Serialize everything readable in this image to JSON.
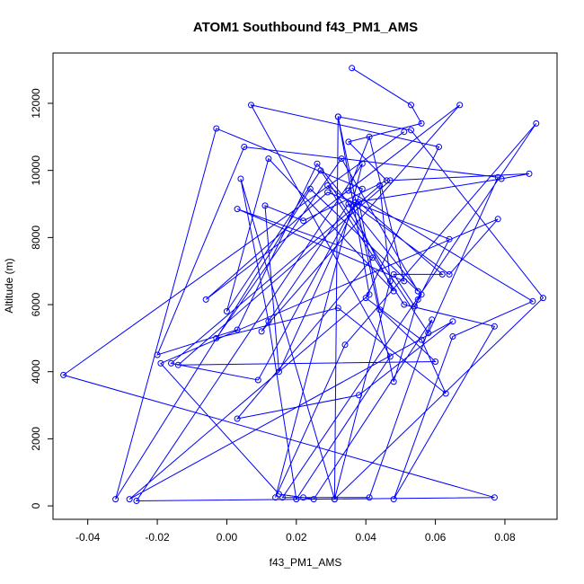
{
  "chart_data": {
    "type": "scatter",
    "title": "ATOM1 Southbound f43_PM1_AMS",
    "xlabel": "f43_PM1_AMS",
    "ylabel": "Altitude (m)",
    "xlim": [
      -0.05,
      0.095
    ],
    "ylim": [
      -400,
      13500
    ],
    "x_ticks": [
      -0.04,
      -0.02,
      0.0,
      0.02,
      0.04,
      0.06,
      0.08
    ],
    "x_tick_labels": [
      "-0.04",
      "-0.02",
      "0.00",
      "0.02",
      "0.04",
      "0.06",
      "0.08"
    ],
    "y_ticks": [
      0,
      2000,
      4000,
      6000,
      8000,
      10000,
      12000
    ],
    "y_tick_labels": [
      "0",
      "2000",
      "4000",
      "6000",
      "8000",
      "10000",
      "12000"
    ],
    "grid": false,
    "legend": "none",
    "marker": "open-circle",
    "connected": true,
    "color": "#0000ff",
    "series": [
      {
        "x": [
          0.036,
          0.053,
          0.056,
          0.035,
          0.046,
          0.022,
          0.011,
          0.015,
          0.039,
          -0.003,
          -0.032,
          0.024,
          0.055,
          0.033,
          -0.003,
          0.032,
          0.063,
          0.056,
          0.04,
          0.061,
          0.007,
          0.047,
          0.02,
          0.012,
          0.004,
          0.031,
          0.032,
          0.048,
          0.055,
          0.064,
          0.029,
          -0.006,
          0.067,
          0.01,
          0.035,
          0.048,
          0.012,
          0.0,
          0.027,
          0.058,
          0.078,
          0.005,
          -0.02,
          0.003,
          0.026,
          0.056,
          0.054,
          0.048,
          0.062,
          0.038,
          0.044,
          0.06,
          -0.014,
          0.047,
          0.087,
          0.079,
          0.037,
          0.009,
          -0.016,
          0.044,
          0.047,
          0.031,
          0.091,
          0.053,
          0.032,
          0.041,
          -0.028,
          0.065,
          0.038,
          0.003,
          0.042,
          0.003,
          0.051,
          0.041,
          0.035,
          0.088,
          0.065,
          0.048,
          0.077,
          0.051,
          0.029,
          0.064,
          0.078,
          -0.019,
          0.015,
          0.022,
          0.025,
          0.059,
          0.041,
          0.016,
          0.089,
          0.034,
          0.014,
          0.039,
          -0.026,
          0.077,
          -0.047,
          0.051
        ],
        "y": [
          13050,
          11950,
          11400,
          10850,
          9700,
          8500,
          8950,
          4000,
          9450,
          11250,
          200,
          9450,
          6400,
          10350,
          5000,
          5900,
          3350,
          4950,
          6200,
          10700,
          11950,
          4450,
          200,
          5500,
          9750,
          200,
          11600,
          3700,
          6150,
          7950,
          9350,
          6150,
          11950,
          5200,
          9000,
          6400,
          10350,
          5800,
          10000,
          5150,
          9800,
          10700,
          4500,
          5250,
          10200,
          6300,
          5950,
          6900,
          6900,
          9050,
          5850,
          4300,
          4200,
          9700,
          9900,
          9750,
          9050,
          3750,
          4250,
          9550,
          6700,
          200,
          6200,
          11200,
          11600,
          6300,
          200,
          5500,
          3300,
          2600,
          7400,
          8850,
          6700,
          11000,
          9400,
          6100,
          5050,
          200,
          5350,
          6000,
          9550,
          6900,
          8550,
          4250,
          350,
          250,
          200,
          5550,
          250,
          250,
          11400,
          4800,
          250,
          10200,
          150,
          250,
          3900,
          11150
        ]
      }
    ]
  }
}
